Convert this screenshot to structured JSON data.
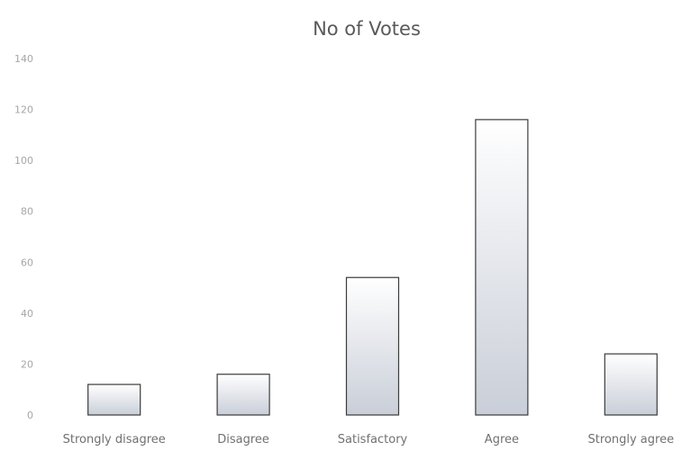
{
  "chart_data": {
    "type": "bar",
    "title": "No of Votes",
    "xlabel": "",
    "ylabel": "",
    "categories": [
      "Strongly disagree",
      "Disagree",
      "Satisfactory",
      "Agree",
      "Strongly agree"
    ],
    "series": [
      {
        "values": [
          12,
          16,
          54,
          116,
          24
        ]
      }
    ],
    "ylim": [
      0,
      140
    ],
    "yticks": [
      "0",
      "20",
      "40",
      "60",
      "80",
      "100",
      "120",
      "140"
    ],
    "yticks_values": [
      0,
      20,
      40,
      60,
      80,
      100,
      120,
      140
    ],
    "grid": false,
    "legend": "none",
    "colors": {
      "bar_fill_top": "#ffffff",
      "bar_fill_bottom": "#c9ced8",
      "bar_stroke": "#3b3b3b",
      "title": "#5a5a5a",
      "tick_label": "#a6a6a6",
      "category_label": "#707070"
    }
  }
}
